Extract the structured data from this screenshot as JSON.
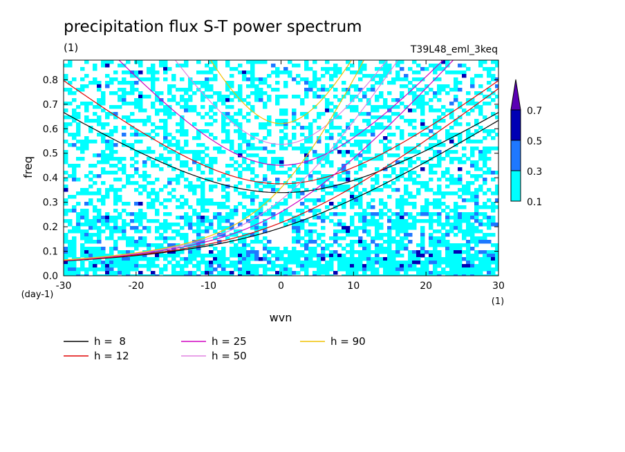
{
  "header": {
    "title": "precipitation flux S-T power spectrum",
    "subtitle": "(1)",
    "run_label": "T39L48_eml_3keq"
  },
  "chart_data": {
    "type": "heatmap",
    "title": "precipitation flux S-T power spectrum",
    "subtitle": "(1)",
    "xlabel": "wvn",
    "ylabel": "freq",
    "xunit": "(1)",
    "yunit": "(day-1)",
    "xlim": [
      -30,
      30
    ],
    "ylim": [
      0,
      0.88
    ],
    "xticks": [
      -30,
      -20,
      -10,
      0,
      10,
      20,
      30
    ],
    "xtick_labels": [
      "-30",
      "-20",
      "-10",
      "0",
      "10",
      "20",
      "30"
    ],
    "yticks": [
      0,
      0.1,
      0.2,
      0.3,
      0.4,
      0.5,
      0.6,
      0.7,
      0.8
    ],
    "ytick_labels": [
      "0.0",
      "0.1",
      "0.2",
      "0.3",
      "0.4",
      "0.5",
      "0.6",
      "0.7",
      "0.8"
    ],
    "colorbar": {
      "levels": [
        0.1,
        0.3,
        0.5,
        0.7
      ],
      "level_labels": [
        "0.1",
        "0.3",
        "0.5",
        "0.7"
      ],
      "colors": [
        "#00ffff",
        "#1e78ff",
        "#0000b4",
        "#5a00b4"
      ],
      "extend": "max"
    },
    "dispersion_curves": [
      {
        "label": "h =  8",
        "h": 8,
        "color": "#000000"
      },
      {
        "label": "h = 12",
        "h": 12,
        "color": "#e00000"
      },
      {
        "label": "h = 25",
        "h": 25,
        "color": "#d000c0"
      },
      {
        "label": "h = 50",
        "h": 50,
        "color": "#e080e0"
      },
      {
        "label": "h = 90",
        "h": 90,
        "color": "#f0c000"
      }
    ],
    "field_description_values": {
      "background_band_low_freq": "0.0-0.12 strong, values 0.1-0.5",
      "noise_patches": "scattered 0.1-0.3 across domain"
    },
    "grid": false,
    "legend_position": "bottom-left"
  }
}
